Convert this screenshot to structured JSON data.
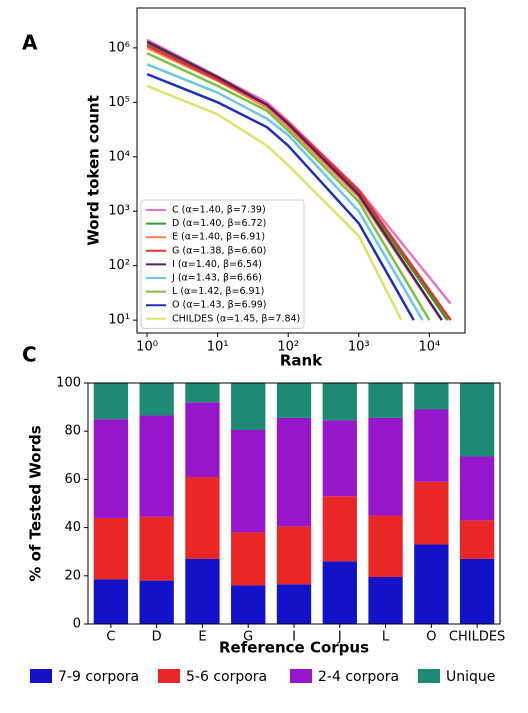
{
  "chart_data": [
    {
      "type": "line",
      "panel_label": "A",
      "x_label": "Rank",
      "y_label": "Word token count",
      "xscale": "log",
      "yscale": "log",
      "xlim": [
        0.72,
        32000
      ],
      "ylim": [
        5.8,
        5400000
      ],
      "xticks": [
        {
          "value": 1,
          "label": "10⁰"
        },
        {
          "value": 10,
          "label": "10¹"
        },
        {
          "value": 100,
          "label": "10²"
        },
        {
          "value": 1000,
          "label": "10³"
        },
        {
          "value": 10000,
          "label": "10⁴"
        }
      ],
      "yticks": [
        {
          "value": 10,
          "label": "10¹"
        },
        {
          "value": 100,
          "label": "10²"
        },
        {
          "value": 1000,
          "label": "10³"
        },
        {
          "value": 10000,
          "label": "10⁴"
        },
        {
          "value": 100000,
          "label": "10⁵"
        },
        {
          "value": 1000000,
          "label": "10⁶"
        }
      ],
      "legend": "lower left",
      "series": [
        {
          "name": "C (α=1.40, β=7.39)",
          "color": "#e377c2",
          "x": [
            1,
            10,
            50,
            100,
            1000,
            20000
          ],
          "values": [
            1400000,
            300000,
            100000,
            45000,
            2500,
            20
          ]
        },
        {
          "name": "D (α=1.40, β=6.72)",
          "color": "#2ca02c",
          "x": [
            1,
            10,
            50,
            100,
            1000,
            18000
          ],
          "values": [
            1200000,
            280000,
            90000,
            40000,
            2200,
            10
          ]
        },
        {
          "name": "E (α=1.40, β=6.91)",
          "color": "#ff7f50",
          "x": [
            1,
            10,
            50,
            100,
            1000,
            15000
          ],
          "values": [
            1000000,
            250000,
            80000,
            35000,
            1800,
            10
          ]
        },
        {
          "name": "G (α=1.38, β=6.60)",
          "color": "#e8312a",
          "x": [
            1,
            10,
            50,
            100,
            1000,
            20000
          ],
          "values": [
            1100000,
            260000,
            90000,
            42000,
            2400,
            10
          ]
        },
        {
          "name": "I (α=1.40, β=6.54)",
          "color": "#5b1f5e",
          "x": [
            1,
            10,
            50,
            100,
            1000,
            15000
          ],
          "values": [
            1300000,
            290000,
            90000,
            40000,
            2000,
            10
          ]
        },
        {
          "name": "J (α=1.43, β=6.66)",
          "color": "#6ec6e8",
          "x": [
            1,
            10,
            50,
            100,
            1000,
            8000
          ],
          "values": [
            500000,
            150000,
            50000,
            25000,
            1000,
            10
          ]
        },
        {
          "name": "L (α=1.42, β=6.91)",
          "color": "#7cc242",
          "x": [
            1,
            10,
            50,
            100,
            1000,
            10000
          ],
          "values": [
            800000,
            200000,
            70000,
            30000,
            1500,
            10
          ]
        },
        {
          "name": "O (α=1.43, β=6.99)",
          "color": "#1f2fbf",
          "x": [
            1,
            10,
            50,
            100,
            1000,
            6000
          ],
          "values": [
            330000,
            100000,
            35000,
            16000,
            600,
            10
          ]
        },
        {
          "name": "CHILDES (α=1.45, β=7.84)",
          "color": "#dfe26a",
          "x": [
            1,
            10,
            50,
            100,
            1000,
            4000
          ],
          "values": [
            200000,
            60000,
            16000,
            7000,
            350,
            10
          ]
        }
      ]
    },
    {
      "type": "bar",
      "stacked": true,
      "panel_label": "C",
      "x_label": "Reference Corpus",
      "y_label": "% of Tested Words",
      "ylim": [
        0,
        100
      ],
      "yticks": [
        0,
        20,
        40,
        60,
        80,
        100
      ],
      "legend": "bottom",
      "categories": [
        "C",
        "D",
        "E",
        "G",
        "I",
        "J",
        "L",
        "O",
        "CHILDES"
      ],
      "series": [
        {
          "name": "7-9 corpora",
          "color": "#1212c8",
          "values": [
            18.5,
            18,
            27,
            16,
            16.5,
            26,
            19.5,
            33,
            27
          ]
        },
        {
          "name": "5-6 corpora",
          "color": "#ea2626",
          "values": [
            25.5,
            26.5,
            34,
            22,
            24,
            27,
            25.5,
            26,
            16
          ]
        },
        {
          "name": "2-4 corpora",
          "color": "#9616cc",
          "values": [
            41,
            42,
            31,
            42.5,
            45,
            31.5,
            40.5,
            30,
            26.5
          ]
        },
        {
          "name": "Unique",
          "color": "#1f8a73",
          "values": [
            15,
            13.5,
            8,
            19.5,
            14.5,
            15.5,
            14.5,
            11,
            30.5
          ]
        }
      ]
    }
  ]
}
